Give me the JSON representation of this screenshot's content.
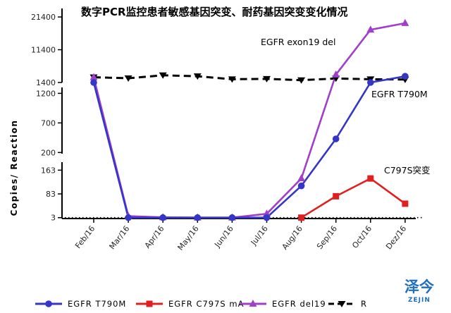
{
  "chart_data": {
    "type": "line",
    "title": "数字PCR监控患者敏感基因突变、耐药基因突变变化情况",
    "ylabel": "Copies/ Reaction",
    "xlabel": "",
    "categories": [
      "Feb/16",
      "Mar/16",
      "Apr/16",
      "May/16",
      "Jun/16",
      "Jul/16",
      "Aug/16",
      "Sep/16",
      "Oct/16",
      "Dez/16"
    ],
    "y_ticks": {
      "lower": [
        "3",
        "83",
        "163"
      ],
      "middle": [
        "200",
        "700",
        "1200"
      ],
      "upper": [
        "1400",
        "11400",
        "21400"
      ]
    },
    "y_axis_segments": [
      {
        "range": [
          0,
          190
        ],
        "ticks": [
          3,
          83,
          163
        ]
      },
      {
        "range": [
          180,
          1300
        ],
        "ticks": [
          200,
          700,
          1200
        ]
      },
      {
        "range": [
          1400,
          24000
        ],
        "ticks": [
          1400,
          11400,
          21400
        ]
      }
    ],
    "reference_line": {
      "value": 3,
      "style": "dotted"
    },
    "series": [
      {
        "name": "EGFR T790M",
        "color": "#3535c8",
        "marker": "circle",
        "values": [
          1400,
          3,
          3,
          3,
          3,
          3,
          110,
          430,
          1400,
          3300
        ]
      },
      {
        "name": "EGFR C797S mA",
        "color": "#e02020",
        "marker": "square",
        "values": [
          null,
          null,
          null,
          null,
          null,
          null,
          3,
          75,
          135,
          50
        ]
      },
      {
        "name": "EGFR del19",
        "color": "#a040c8",
        "marker": "triangle",
        "values": [
          3000,
          8,
          4,
          3,
          3,
          16,
          135,
          3800,
          17500,
          19500
        ]
      },
      {
        "name": "R",
        "color": "#000000",
        "marker": "triangle-down",
        "dashed": true,
        "values": [
          3000,
          2700,
          3600,
          3300,
          2400,
          2500,
          2100,
          2600,
          2400,
          2300
        ]
      }
    ],
    "annotations": [
      {
        "text": "EGFR exon19 del",
        "series": "EGFR del19"
      },
      {
        "text": "EGFR T790M",
        "series": "EGFR T790M"
      },
      {
        "text": "C797S突变",
        "series": "EGFR C797S mA"
      }
    ],
    "legend_position": "bottom"
  },
  "watermark": {
    "cn": "泽今",
    "en": "ZEJIN"
  }
}
